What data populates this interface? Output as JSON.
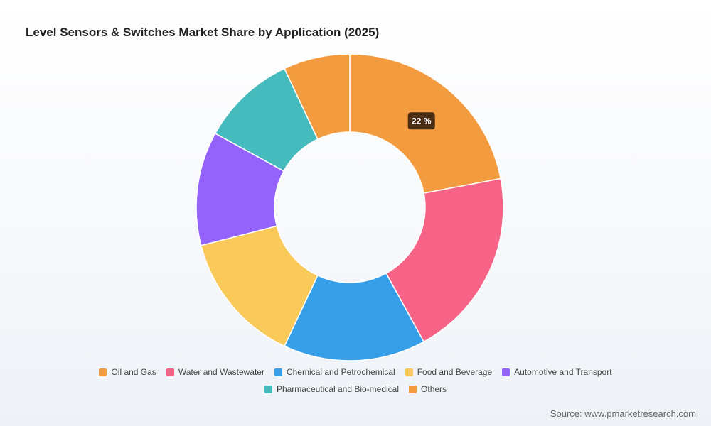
{
  "chart_data": {
    "type": "pie",
    "title": "Level Sensors & Switches Market Share by Application (2025)",
    "categories": [
      "Oil and Gas",
      "Water and Wastewater",
      "Chemical and Petrochemical",
      "Food and Beverage",
      "Automotive and Transport",
      "Pharmaceutical and Bio-medical",
      "Others"
    ],
    "values": [
      22,
      20,
      15,
      14,
      12,
      10,
      7
    ],
    "colors": [
      "#f39c3f",
      "#f76386",
      "#379fe8",
      "#f9c95a",
      "#9463fb",
      "#46bbbd",
      "#f39c3f"
    ],
    "data_labels": [
      {
        "category": "Oil and Gas",
        "text": "22 %"
      }
    ],
    "legend_position": "bottom",
    "donut": true
  },
  "source": "Source: www.pmarketresearch.com"
}
